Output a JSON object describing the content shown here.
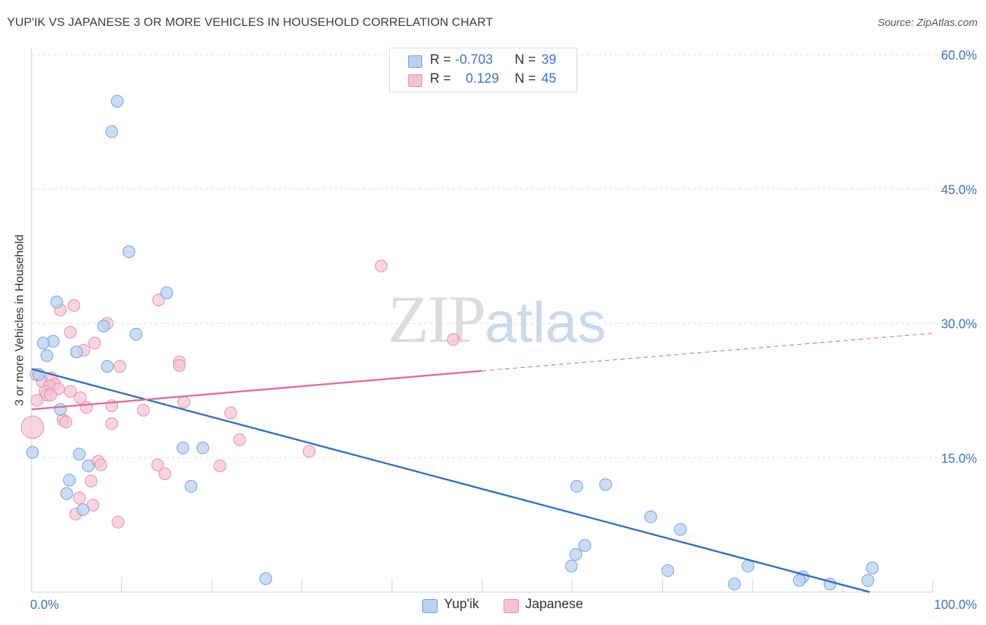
{
  "title": "YUP'IK VS JAPANESE 3 OR MORE VEHICLES IN HOUSEHOLD CORRELATION CHART",
  "source": "Source: ZipAtlas.com",
  "watermark": {
    "part1": "ZIP",
    "part2": "atlas"
  },
  "colors": {
    "blue_fill": "#b8d2f1",
    "blue_stroke": "#6e9ede",
    "blue_line": "#2f6fcc",
    "pink_fill": "#f7c3d2",
    "pink_stroke": "#e88aa7",
    "pink_line": "#e06d93",
    "axis_text": "#3b74c9",
    "grid": "#dedede"
  },
  "legend_top": [
    {
      "r_label": "R =",
      "r_value": "-0.703",
      "n_label": "N =",
      "n_value": "39"
    },
    {
      "r_label": "R =",
      "r_value": "0.129",
      "n_label": "N =",
      "n_value": "45"
    }
  ],
  "legend_bottom": [
    "Yup'ik",
    "Japanese"
  ],
  "chart_data": {
    "type": "scatter",
    "title": "YUP'IK VS JAPANESE 3 OR MORE VEHICLES IN HOUSEHOLD CORRELATION CHART",
    "xlabel": "",
    "ylabel": "3 or more Vehicles in Household",
    "xlim": [
      0,
      100
    ],
    "ylim": [
      0,
      60
    ],
    "x_tick_labels": [
      "0.0%",
      "100.0%"
    ],
    "y_ticks": [
      15,
      30,
      45,
      60
    ],
    "y_tick_labels": [
      "15.0%",
      "30.0%",
      "45.0%",
      "60.0%"
    ],
    "grid": true,
    "legend_position": "top-center",
    "series": [
      {
        "name": "Yup'ik",
        "r": -0.703,
        "n": 39,
        "trend": {
          "x": [
            0,
            93
          ],
          "y": [
            24.9,
            0
          ]
        },
        "points": [
          [
            9.5,
            54.8
          ],
          [
            8.9,
            51.4
          ],
          [
            10.8,
            38.0
          ],
          [
            15.0,
            33.4
          ],
          [
            2.8,
            32.4
          ],
          [
            8.0,
            29.7
          ],
          [
            11.6,
            28.8
          ],
          [
            2.4,
            28.0
          ],
          [
            1.3,
            27.8
          ],
          [
            1.7,
            26.4
          ],
          [
            5.0,
            26.8
          ],
          [
            8.4,
            25.2
          ],
          [
            0.8,
            24.3
          ],
          [
            3.2,
            20.4
          ],
          [
            0.1,
            15.6
          ],
          [
            5.3,
            15.4
          ],
          [
            6.3,
            14.1
          ],
          [
            16.8,
            16.1
          ],
          [
            19.0,
            16.1
          ],
          [
            4.2,
            12.5
          ],
          [
            3.9,
            11.0
          ],
          [
            5.7,
            9.2
          ],
          [
            17.7,
            11.8
          ],
          [
            26.0,
            1.5
          ],
          [
            60.5,
            11.8
          ],
          [
            63.7,
            12.0
          ],
          [
            68.7,
            8.4
          ],
          [
            72.0,
            7.0
          ],
          [
            61.4,
            5.2
          ],
          [
            60.4,
            4.2
          ],
          [
            59.9,
            2.9
          ],
          [
            70.6,
            2.4
          ],
          [
            78.0,
            0.9
          ],
          [
            79.5,
            2.9
          ],
          [
            85.6,
            1.7
          ],
          [
            85.2,
            1.3
          ],
          [
            88.6,
            0.9
          ],
          [
            93.3,
            2.7
          ],
          [
            92.8,
            1.3
          ]
        ]
      },
      {
        "name": "Japanese",
        "r": 0.129,
        "n": 45,
        "trend": {
          "x": [
            0,
            50
          ],
          "y": [
            20.4,
            24.7
          ],
          "dashed_x": [
            50,
            100
          ],
          "dashed_y": [
            24.7,
            28.9
          ]
        },
        "points": [
          [
            38.8,
            36.4
          ],
          [
            14.1,
            32.6
          ],
          [
            4.7,
            32.0
          ],
          [
            3.2,
            31.5
          ],
          [
            8.4,
            30.0
          ],
          [
            4.3,
            29.0
          ],
          [
            7.0,
            27.8
          ],
          [
            5.8,
            27.0
          ],
          [
            46.8,
            28.2
          ],
          [
            16.4,
            25.7
          ],
          [
            16.4,
            25.3
          ],
          [
            9.8,
            25.2
          ],
          [
            0.5,
            24.3
          ],
          [
            1.2,
            23.5
          ],
          [
            2.2,
            23.9
          ],
          [
            2.6,
            23.2
          ],
          [
            2.0,
            23.0
          ],
          [
            1.5,
            22.4
          ],
          [
            3.0,
            22.7
          ],
          [
            4.3,
            22.4
          ],
          [
            1.7,
            22.0
          ],
          [
            2.1,
            22.0
          ],
          [
            0.6,
            21.4
          ],
          [
            5.4,
            21.7
          ],
          [
            16.9,
            21.2
          ],
          [
            6.1,
            20.6
          ],
          [
            8.9,
            20.8
          ],
          [
            12.4,
            20.3
          ],
          [
            22.1,
            20.0
          ],
          [
            3.5,
            19.2
          ],
          [
            3.8,
            19.0
          ],
          [
            0.1,
            18.4
          ],
          [
            8.9,
            18.8
          ],
          [
            23.1,
            17.0
          ],
          [
            30.8,
            15.7
          ],
          [
            7.4,
            14.6
          ],
          [
            7.7,
            14.2
          ],
          [
            14.0,
            14.2
          ],
          [
            14.8,
            13.2
          ],
          [
            20.9,
            14.1
          ],
          [
            6.6,
            12.4
          ],
          [
            5.3,
            10.5
          ],
          [
            6.8,
            9.7
          ],
          [
            4.9,
            8.7
          ],
          [
            9.6,
            7.8
          ]
        ]
      }
    ]
  }
}
